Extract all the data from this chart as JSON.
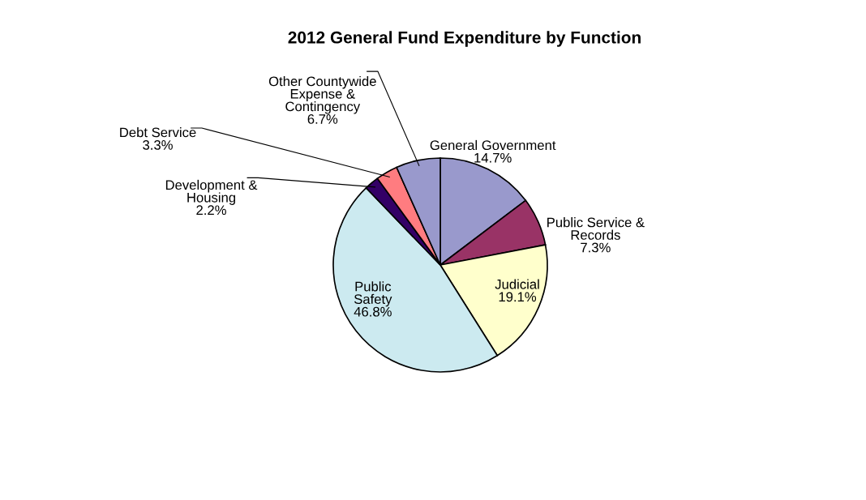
{
  "chart_data": {
    "type": "pie",
    "title": "2012 General Fund Expenditure by Function",
    "categories": [
      "General Government",
      "Public Service & Records",
      "Judicial",
      "Public Safety",
      "Development & Housing",
      "Debt Service",
      "Other Countywide Expense & Contingency"
    ],
    "values": [
      14.7,
      7.3,
      19.1,
      46.8,
      2.2,
      3.3,
      6.7
    ],
    "value_labels": [
      "14.7%",
      "7.3%",
      "19.1%",
      "46.8%",
      "2.2%",
      "3.3%",
      "6.7%"
    ],
    "colors": [
      "#9999cc",
      "#993366",
      "#ffffcc",
      "#cceaf0",
      "#330066",
      "#ff7c80",
      "#9999cc"
    ],
    "legend": false
  }
}
